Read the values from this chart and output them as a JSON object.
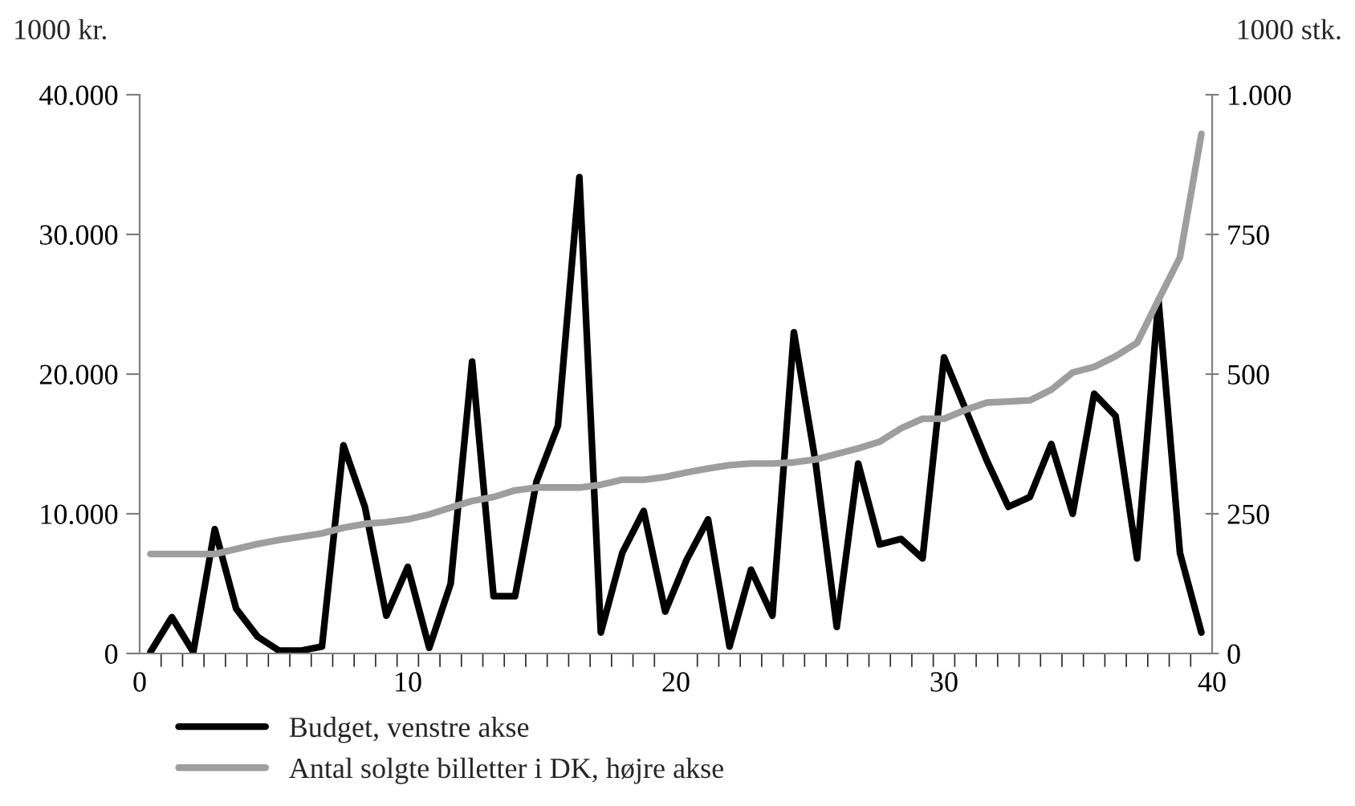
{
  "chart_data": {
    "type": "line",
    "ylabel": "1000 kr.",
    "y2label": "1000 stk.",
    "x": [
      0.4,
      1.2,
      2.0,
      2.8,
      3.6,
      4.4,
      5.2,
      6.0,
      6.8,
      7.6,
      8.4,
      9.2,
      10.0,
      10.8,
      11.6,
      12.4,
      13.2,
      14.0,
      14.8,
      15.6,
      16.4,
      17.2,
      18.0,
      18.8,
      19.6,
      20.4,
      21.2,
      22.0,
      22.8,
      23.6,
      24.4,
      25.2,
      26.0,
      26.8,
      27.6,
      28.4,
      29.2,
      30.0,
      30.8,
      31.6,
      32.4,
      33.2,
      34.0,
      34.8,
      35.6,
      36.4,
      37.2,
      38.0,
      38.8,
      39.6
    ],
    "series": [
      {
        "name": "Budget, venstre akse",
        "color": "#000000",
        "values": [
          100,
          2600,
          100,
          8900,
          3200,
          1200,
          200,
          200,
          500,
          14900,
          10500,
          2700,
          6200,
          400,
          5000,
          20900,
          4100,
          4100,
          12300,
          16300,
          34100,
          1500,
          7200,
          10200,
          3000,
          6700,
          9600,
          500,
          6000,
          2700,
          23000,
          13800,
          1900,
          13600,
          7800,
          8200,
          6800,
          21200,
          17500,
          13800,
          10500,
          11200,
          15000,
          10000,
          18600,
          17000,
          6800,
          25300,
          7200,
          1500
        ]
      },
      {
        "name": "Antal solgte billetter i DK, højre akse",
        "color": "#9e9e9e",
        "axis": "y2",
        "values": [
          178,
          178,
          178,
          178,
          187,
          196,
          203,
          209,
          215,
          225,
          232,
          235,
          240,
          249,
          261,
          273,
          280,
          292,
          297,
          297,
          297,
          302,
          311,
          311,
          316,
          324,
          331,
          337,
          340,
          340,
          342,
          347,
          357,
          367,
          379,
          403,
          420,
          420,
          436,
          449,
          451,
          453,
          472,
          503,
          513,
          532,
          556,
          633,
          709,
          930
        ]
      }
    ],
    "xlim": [
      0,
      40
    ],
    "xticks": [
      0,
      {
        "value": 0.8,
        "label": null
      },
      {
        "value": 1.6,
        "label": null
      },
      {
        "value": 2.4,
        "label": null
      },
      {
        "value": 3.2,
        "label": null
      },
      {
        "value": 4.0,
        "label": null
      },
      {
        "value": 4.8,
        "label": null
      },
      {
        "value": 5.6,
        "label": null
      },
      {
        "value": 6.4,
        "label": null
      },
      {
        "value": 7.2,
        "label": null
      },
      {
        "value": 8.0,
        "label": null
      },
      {
        "value": 8.8,
        "label": null
      },
      {
        "value": 9.6,
        "label": null
      },
      10,
      {
        "value": 10.4,
        "label": null
      },
      {
        "value": 11.2,
        "label": null
      },
      {
        "value": 12.0,
        "label": null
      },
      {
        "value": 12.8,
        "label": null
      },
      {
        "value": 13.6,
        "label": null
      },
      {
        "value": 14.4,
        "label": null
      },
      {
        "value": 15.2,
        "label": null
      },
      {
        "value": 16.0,
        "label": null
      },
      {
        "value": 16.8,
        "label": null
      },
      {
        "value": 17.6,
        "label": null
      },
      {
        "value": 18.4,
        "label": null
      },
      {
        "value": 19.2,
        "label": null
      },
      20,
      {
        "value": 20.8,
        "label": null
      },
      {
        "value": 21.6,
        "label": null
      },
      {
        "value": 22.4,
        "label": null
      },
      {
        "value": 23.2,
        "label": null
      },
      {
        "value": 24.0,
        "label": null
      },
      {
        "value": 24.8,
        "label": null
      },
      {
        "value": 25.6,
        "label": null
      },
      {
        "value": 26.4,
        "label": null
      },
      {
        "value": 27.2,
        "label": null
      },
      {
        "value": 28.0,
        "label": null
      },
      {
        "value": 28.8,
        "label": null
      },
      {
        "value": 29.6,
        "label": null
      },
      30,
      {
        "value": 30.4,
        "label": null
      },
      {
        "value": 31.2,
        "label": null
      },
      {
        "value": 32.0,
        "label": null
      },
      {
        "value": 32.8,
        "label": null
      },
      {
        "value": 33.6,
        "label": null
      },
      {
        "value": 34.4,
        "label": null
      },
      {
        "value": 35.2,
        "label": null
      },
      {
        "value": 36.0,
        "label": null
      },
      {
        "value": 36.8,
        "label": null
      },
      {
        "value": 37.6,
        "label": null
      },
      {
        "value": 38.4,
        "label": null
      },
      {
        "value": 39.2,
        "label": null
      },
      40
    ],
    "ylim": [
      0,
      40000
    ],
    "yticks": [
      0,
      {
        "value": 10000,
        "label": "10.000"
      },
      {
        "value": 20000,
        "label": "20.000"
      },
      {
        "value": 30000,
        "label": "30.000"
      },
      {
        "value": 40000,
        "label": "40.000"
      }
    ],
    "y2lim": [
      0,
      1000
    ],
    "y2ticks": [
      0,
      250,
      500,
      750,
      {
        "value": 1000,
        "label": "1.000"
      }
    ],
    "grid": false,
    "legend": "bottom left"
  }
}
